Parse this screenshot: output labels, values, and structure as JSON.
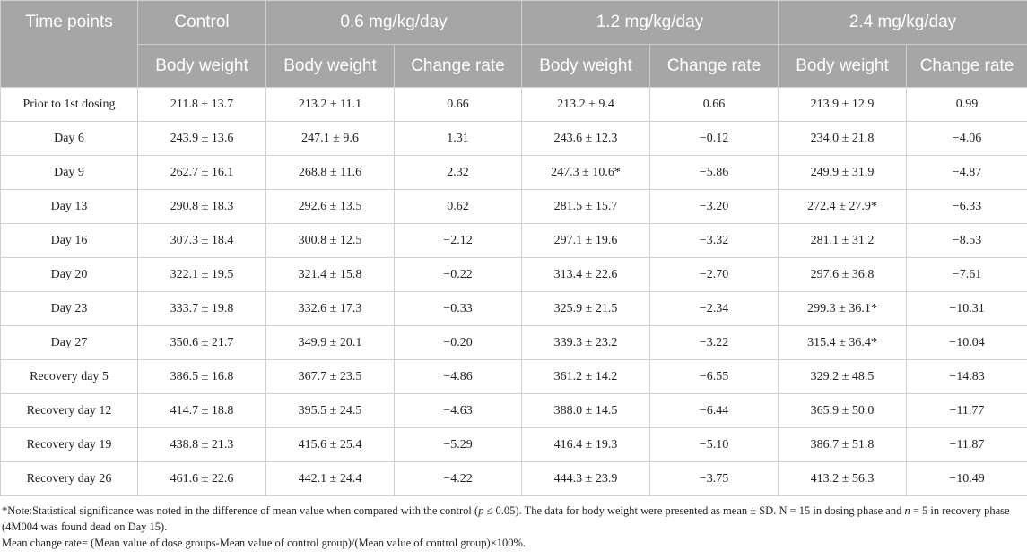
{
  "header": {
    "time_points": "Time points",
    "groups": [
      "Control",
      "0.6 mg/kg/day",
      "1.2 mg/kg/day",
      "2.4 mg/kg/day"
    ],
    "body_weight": "Body weight",
    "change_rate": "Change rate"
  },
  "rows": [
    {
      "label": "Prior to 1st dosing",
      "cells": [
        "211.8 ± 13.7",
        "213.2 ± 11.1",
        "0.66",
        "213.2 ± 9.4",
        "0.66",
        "213.9 ± 12.9",
        "0.99"
      ]
    },
    {
      "label": "Day 6",
      "cells": [
        "243.9 ± 13.6",
        "247.1 ± 9.6",
        "1.31",
        "243.6 ± 12.3",
        "−0.12",
        "234.0 ± 21.8",
        "−4.06"
      ]
    },
    {
      "label": "Day 9",
      "cells": [
        "262.7 ± 16.1",
        "268.8 ± 11.6",
        "2.32",
        "247.3 ± 10.6*",
        "−5.86",
        "249.9 ± 31.9",
        "−4.87"
      ]
    },
    {
      "label": "Day 13",
      "cells": [
        "290.8 ± 18.3",
        "292.6 ± 13.5",
        "0.62",
        "281.5 ± 15.7",
        "−3.20",
        "272.4 ± 27.9*",
        "−6.33"
      ]
    },
    {
      "label": "Day 16",
      "cells": [
        "307.3 ± 18.4",
        "300.8 ± 12.5",
        "−2.12",
        "297.1 ± 19.6",
        "−3.32",
        "281.1 ± 31.2",
        "−8.53"
      ]
    },
    {
      "label": "Day 20",
      "cells": [
        "322.1 ± 19.5",
        "321.4 ± 15.8",
        "−0.22",
        "313.4 ± 22.6",
        "−2.70",
        "297.6 ± 36.8",
        "−7.61"
      ]
    },
    {
      "label": "Day 23",
      "cells": [
        "333.7 ± 19.8",
        "332.6 ± 17.3",
        "−0.33",
        "325.9 ± 21.5",
        "−2.34",
        "299.3 ± 36.1*",
        "−10.31"
      ]
    },
    {
      "label": "Day 27",
      "cells": [
        "350.6 ± 21.7",
        "349.9 ± 20.1",
        "−0.20",
        "339.3 ± 23.2",
        "−3.22",
        "315.4 ± 36.4*",
        "−10.04"
      ]
    },
    {
      "label": "Recovery day 5",
      "cells": [
        "386.5 ± 16.8",
        "367.7 ± 23.5",
        "−4.86",
        "361.2 ± 14.2",
        "−6.55",
        "329.2 ± 48.5",
        "−14.83"
      ]
    },
    {
      "label": "Recovery day 12",
      "cells": [
        "414.7 ± 18.8",
        "395.5 ± 24.5",
        "−4.63",
        "388.0 ± 14.5",
        "−6.44",
        "365.9 ± 50.0",
        "−11.77"
      ]
    },
    {
      "label": "Recovery day 19",
      "cells": [
        "438.8 ± 21.3",
        "415.6 ± 25.4",
        "−5.29",
        "416.4 ± 19.3",
        "−5.10",
        "386.7 ± 51.8",
        "−11.87"
      ]
    },
    {
      "label": "Recovery day 26",
      "cells": [
        "461.6 ± 22.6",
        "442.1 ± 24.4",
        "−4.22",
        "444.3 ± 23.9",
        "−3.75",
        "413.2 ± 56.3",
        "−10.49"
      ]
    }
  ],
  "footnote": {
    "line1_a": "*Note:Statistical significance was noted in the difference of mean value when compared with the control (",
    "line1_p": "p",
    "line1_b": " ≤ 0.05). The data for body weight were presented as mean ± SD. N = 15 in dosing phase and ",
    "line1_n": "n",
    "line1_c": " = 5 in recovery phase (4M004 was found dead on Day 15).",
    "line2": "Mean change rate= (Mean value of dose groups-Mean value of control group)/(Mean value of control group)×100%."
  }
}
